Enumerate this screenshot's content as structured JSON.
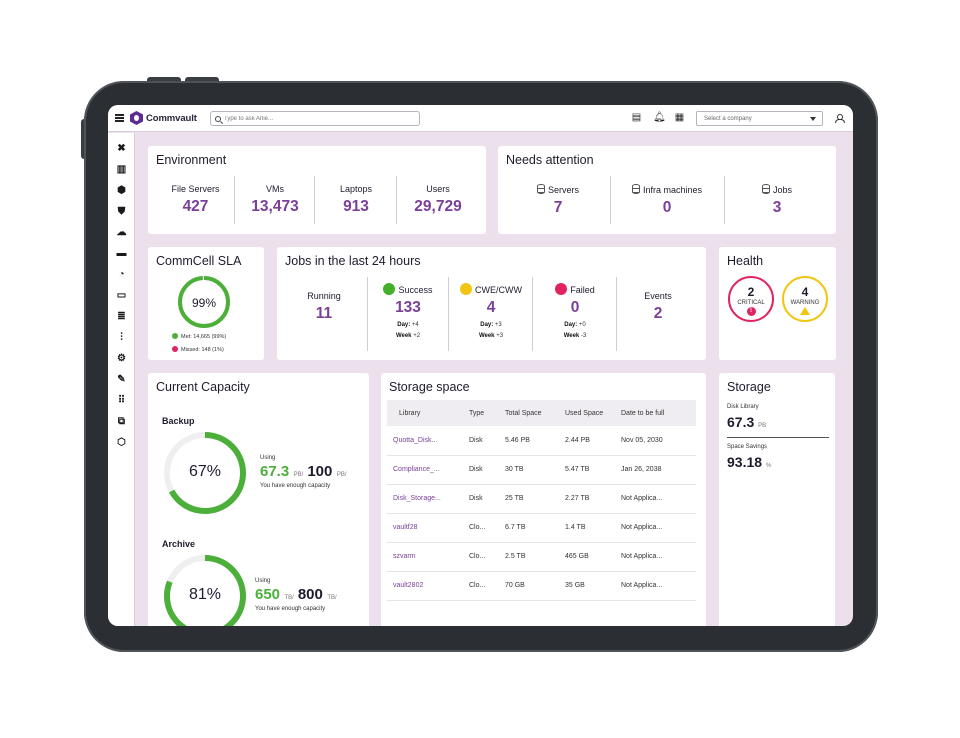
{
  "topbar": {
    "brand": "Commvault",
    "search_placeholder": "Type to ask Arlie...",
    "company_select": "Select a company"
  },
  "sidebar": {
    "icons": [
      "tools-icon",
      "reports-icon",
      "shield-lock-icon",
      "shield-check-icon",
      "cloud-icon",
      "briefcase-icon",
      "gauge-icon",
      "monitor-icon",
      "database-icon",
      "sliders-icon",
      "gear-icon",
      "clipboard-edit-icon",
      "apps-grid-icon",
      "package-icon",
      "commvault-hex-icon"
    ]
  },
  "environment": {
    "title": "Environment",
    "stats": [
      {
        "label": "File Servers",
        "value": "427"
      },
      {
        "label": "VMs",
        "value": "13,473"
      },
      {
        "label": "Laptops",
        "value": "913"
      },
      {
        "label": "Users",
        "value": "29,729"
      }
    ]
  },
  "needs_attention": {
    "title": "Needs attention",
    "stats": [
      {
        "label": "Servers",
        "value": "7"
      },
      {
        "label": "Infra machines",
        "value": "0"
      },
      {
        "label": "Jobs",
        "value": "3"
      }
    ]
  },
  "sla": {
    "title": "CommCell SLA",
    "percent": "99%",
    "fraction": 0.99,
    "met": "Met: 14,665 (99%)",
    "missed": "Missed: 148 (1%)",
    "colors": {
      "met": "#4caf3a",
      "missed": "#e0245e"
    }
  },
  "jobs": {
    "title": "Jobs in the last 24 hours",
    "running": {
      "label": "Running",
      "value": "11"
    },
    "success": {
      "label": "Success",
      "value": "133",
      "day": "+4",
      "week": "+2",
      "color": "#43b02a"
    },
    "cwe": {
      "label": "CWE/CWW",
      "value": "4",
      "day": "+3",
      "week": "+3",
      "color": "#f2c512"
    },
    "failed": {
      "label": "Failed",
      "value": "0",
      "day": "+0",
      "week": "-3",
      "color": "#e0245e"
    },
    "events": {
      "label": "Events",
      "value": "2"
    },
    "day_label": "Day:",
    "week_label": "Week"
  },
  "health": {
    "title": "Health",
    "critical": {
      "value": "2",
      "label": "CRITICAL",
      "color": "#e0245e"
    },
    "warning": {
      "value": "4",
      "label": "WARNING",
      "color": "#f2c512"
    }
  },
  "capacity": {
    "title": "Current Capacity",
    "backup": {
      "label": "Backup",
      "percent": "67%",
      "fraction": 0.67,
      "using": "Using",
      "used": "67.3",
      "used_unit": "PB/",
      "total": "100",
      "total_unit": "PB/",
      "note": "You have enough capacity"
    },
    "archive": {
      "label": "Archive",
      "percent": "81%",
      "fraction": 0.81,
      "using": "Using",
      "used": "650",
      "used_unit": "TB/",
      "total": "800",
      "total_unit": "TB/",
      "note": "You have enough capacity"
    }
  },
  "storage_space": {
    "title": "Storage space",
    "columns": [
      "Library",
      "Type",
      "Total Space",
      "Used Space",
      "Date to be full"
    ],
    "rows": [
      [
        "Quotta_Disk...",
        "Disk",
        "5.46 PB",
        "2.44 PB",
        "Nov 05, 2030"
      ],
      [
        "Compliance_...",
        "Disk",
        "30 TB",
        "5.47 TB",
        "Jan 26, 2038"
      ],
      [
        "Disk_Storage...",
        "Disk",
        "25 TB",
        "2.27 TB",
        "Not Applica..."
      ],
      [
        "vaultf28",
        "Clo...",
        "6.7 TB",
        "1.4 TB",
        "Not Applica..."
      ],
      [
        "szvarm",
        "Clo...",
        "2.5 TB",
        "465 GB",
        "Not Applica..."
      ],
      [
        "vault2802",
        "Clo...",
        "70 GB",
        "35 GB",
        "Not Applica..."
      ]
    ]
  },
  "storage": {
    "title": "Storage",
    "disk_library_label": "Disk Library",
    "disk_library_value": "67.3",
    "disk_library_unit": "PB",
    "savings_label": "Space Savings",
    "savings_value": "93.18",
    "savings_unit": "%"
  }
}
